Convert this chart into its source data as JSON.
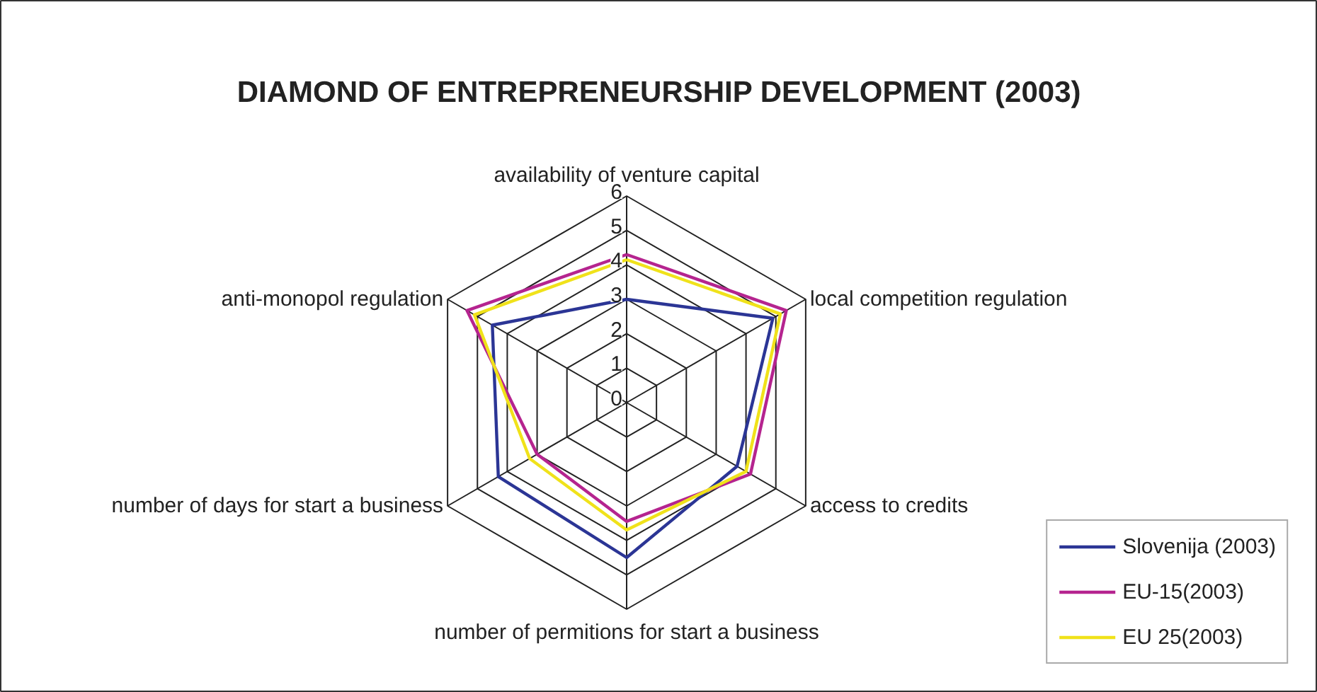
{
  "chart_data": {
    "type": "radar",
    "title": "DIAMOND OF ENTREPRENEURSHIP DEVELOPMENT (2003)",
    "categories": [
      "availability of venture capital",
      "local competition regulation",
      "access to credits",
      "number of permitions for start a business",
      "number of days for start a business",
      "anti-monopol regulation"
    ],
    "series": [
      {
        "name": "Slovenija (2003)",
        "color": "#2b3595",
        "values": [
          3.0,
          4.9,
          3.7,
          4.5,
          4.3,
          4.5
        ]
      },
      {
        "name": "EU-15(2003)",
        "color": "#b5248f",
        "values": [
          4.3,
          5.35,
          4.15,
          3.45,
          3.0,
          5.35
        ]
      },
      {
        "name": "EU 25(2003)",
        "color": "#f0e21a",
        "values": [
          4.15,
          5.15,
          4.0,
          3.7,
          3.25,
          5.1
        ]
      }
    ],
    "ylim": [
      0,
      6
    ],
    "yticks": [
      0,
      1,
      2,
      3,
      4,
      5,
      6
    ],
    "grid": true,
    "legend": "bottom right"
  }
}
